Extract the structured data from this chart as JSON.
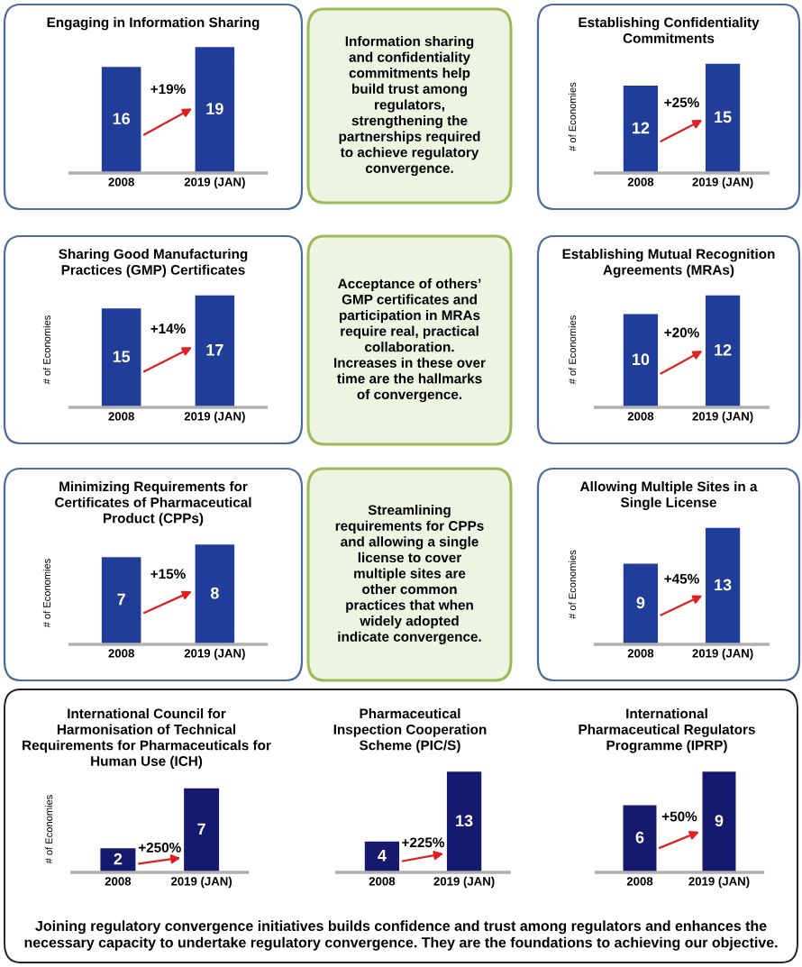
{
  "chart_data": [
    {
      "type": "bar",
      "title": "Engaging in Information Sharing",
      "categories": [
        "2008",
        "2019 (JAN)"
      ],
      "values": [
        16,
        19
      ],
      "color": "#1f3d99",
      "data_labels": true,
      "tick_labels": "x",
      "annotations": [
        "+19%"
      ]
    },
    {
      "type": "other",
      "annotations": [
        "Information sharing\nand confidentiality\ncommitments help\nbuild trust among\nregulators,\nstrengthening the\npartnerships required\nto achieve regulatory\nconvergence."
      ]
    },
    {
      "type": "bar",
      "title": "Establishing Confidentiality\nCommitments",
      "ylabel": "# of Economies",
      "categories": [
        "2008",
        "2019 (JAN)"
      ],
      "values": [
        12,
        15
      ],
      "color": "#1f3d99",
      "data_labels": true,
      "tick_labels": "x",
      "annotations": [
        "+25%"
      ]
    },
    {
      "type": "bar",
      "title": "Sharing Good Manufacturing\nPractices (GMP) Certificates",
      "ylabel": "# of Economies",
      "categories": [
        "2008",
        "2019 (JAN)"
      ],
      "values": [
        15,
        17
      ],
      "color": "#1f3d99",
      "data_labels": true,
      "tick_labels": "x",
      "annotations": [
        "+14%"
      ]
    },
    {
      "type": "other",
      "annotations": [
        "Acceptance of others’\nGMP certificates and\nparticipation in MRAs\nrequire real, practical\ncollaboration.\nIncreases in these over\ntime are the hallmarks\nof convergence."
      ]
    },
    {
      "type": "bar",
      "title": "Establishing Mutual Recognition\nAgreements (MRAs)",
      "ylabel": "# of Economies",
      "categories": [
        "2008",
        "2019 (JAN)"
      ],
      "values": [
        10,
        12
      ],
      "color": "#1f3d99",
      "data_labels": true,
      "tick_labels": "x",
      "annotations": [
        "+20%"
      ]
    },
    {
      "type": "bar",
      "title": "Minimizing Requirements for\nCertificates of Pharmaceutical\nProduct (CPPs)",
      "ylabel": "# of Economies",
      "categories": [
        "2008",
        "2019 (JAN)"
      ],
      "values": [
        7,
        8
      ],
      "color": "#1f3d99",
      "data_labels": true,
      "tick_labels": "x",
      "annotations": [
        "+15%"
      ]
    },
    {
      "type": "other",
      "annotations": [
        "Streamlining\nrequirements for CPPs\nand allowing a single\nlicense to cover\nmultiple sites are\nother common\npractices that when\nwidely adopted\nindicate convergence."
      ]
    },
    {
      "type": "bar",
      "title": "Allowing Multiple Sites in a\nSingle License",
      "ylabel": "# of Economies",
      "categories": [
        "2008",
        "2019 (JAN)"
      ],
      "values": [
        9,
        13
      ],
      "color": "#1f3d99",
      "data_labels": true,
      "tick_labels": "x",
      "annotations": [
        "+45%"
      ]
    },
    {
      "type": "bar",
      "title": "International Council for\nHarmonisation of Technical\nRequirements for Pharmaceuticals for\nHuman Use (ICH)",
      "ylabel": "# of Economies",
      "categories": [
        "2008",
        "2019 (JAN)"
      ],
      "values": [
        2,
        7
      ],
      "color": "#151a6e",
      "data_labels": true,
      "tick_labels": "x",
      "annotations": [
        "+250%"
      ]
    },
    {
      "type": "bar",
      "title": "Pharmaceutical\nInspection Cooperation\nScheme (PIC/S)",
      "categories": [
        "2008",
        "2019 (JAN)"
      ],
      "values": [
        4,
        13
      ],
      "color": "#151a6e",
      "data_labels": true,
      "tick_labels": "x",
      "annotations": [
        "+225%"
      ]
    },
    {
      "type": "bar",
      "title": "International\nPharmaceutical Regulators\nProgramme (IPRP)",
      "categories": [
        "2008",
        "2019 (JAN)"
      ],
      "values": [
        6,
        9
      ],
      "color": "#151a6e",
      "data_labels": true,
      "tick_labels": "x",
      "annotations": [
        "+50%"
      ]
    },
    {
      "type": "other",
      "annotations": [
        "Joining regulatory convergence initiatives builds confidence and trust among regulators and enhances the\nnecessary capacity to undertake regulatory convergence. They are the foundations to achieving our objective."
      ]
    }
  ]
}
